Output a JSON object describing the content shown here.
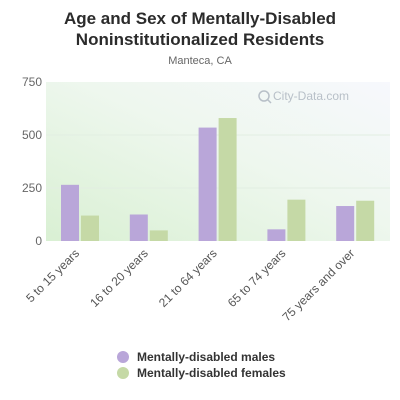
{
  "chart_data": {
    "type": "bar",
    "title": "Age and Sex of Mentally-Disabled Noninstitutionalized Residents",
    "subtitle": "Manteca, CA",
    "categories": [
      "5 to 15 years",
      "16 to 20 years",
      "21 to 64 years",
      "65 to 74 years",
      "75 years and over"
    ],
    "series": [
      {
        "name": "Mentally-disabled males",
        "color": "#b9a6d9",
        "values": [
          265,
          125,
          535,
          55,
          165
        ]
      },
      {
        "name": "Mentally-disabled females",
        "color": "#c5d9a6",
        "values": [
          120,
          50,
          580,
          195,
          190
        ]
      }
    ],
    "yticks": [
      0,
      250,
      500,
      750
    ],
    "ylim": [
      0,
      750
    ],
    "grid": true,
    "legend_position": "bottom",
    "watermark": "City-Data.com"
  }
}
